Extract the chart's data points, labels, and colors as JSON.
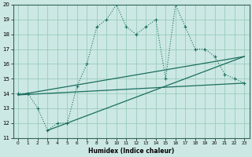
{
  "xlabel": "Humidex (Indice chaleur)",
  "bg_color": "#cce8e4",
  "grid_color": "#99ccbb",
  "line_color": "#1a6e5e",
  "xlim": [
    -0.5,
    23.5
  ],
  "ylim": [
    11,
    20
  ],
  "xticks": [
    0,
    1,
    2,
    3,
    4,
    5,
    6,
    7,
    8,
    9,
    10,
    11,
    12,
    13,
    14,
    15,
    16,
    17,
    18,
    19,
    20,
    21,
    22,
    23
  ],
  "yticks": [
    11,
    12,
    13,
    14,
    15,
    16,
    17,
    18,
    19,
    20
  ],
  "main_x": [
    0,
    1,
    2,
    3,
    4,
    5,
    6,
    7,
    8,
    9,
    10,
    11,
    12,
    13,
    14,
    15,
    16,
    17,
    18,
    19,
    20,
    21,
    22,
    23
  ],
  "main_y": [
    14,
    14,
    13,
    11.5,
    12,
    12,
    14.5,
    16,
    18.5,
    19,
    20,
    18.5,
    18,
    18.5,
    19,
    15,
    20,
    18.5,
    17,
    17,
    16.5,
    15.3,
    15,
    14.7
  ],
  "trend1_x": [
    0,
    23
  ],
  "trend1_y": [
    13.9,
    14.7
  ],
  "trend2_x": [
    0,
    23
  ],
  "trend2_y": [
    13.9,
    16.5
  ],
  "trend3_x": [
    3,
    23
  ],
  "trend3_y": [
    11.5,
    16.5
  ],
  "figsize": [
    3.2,
    2.0
  ],
  "dpi": 100
}
